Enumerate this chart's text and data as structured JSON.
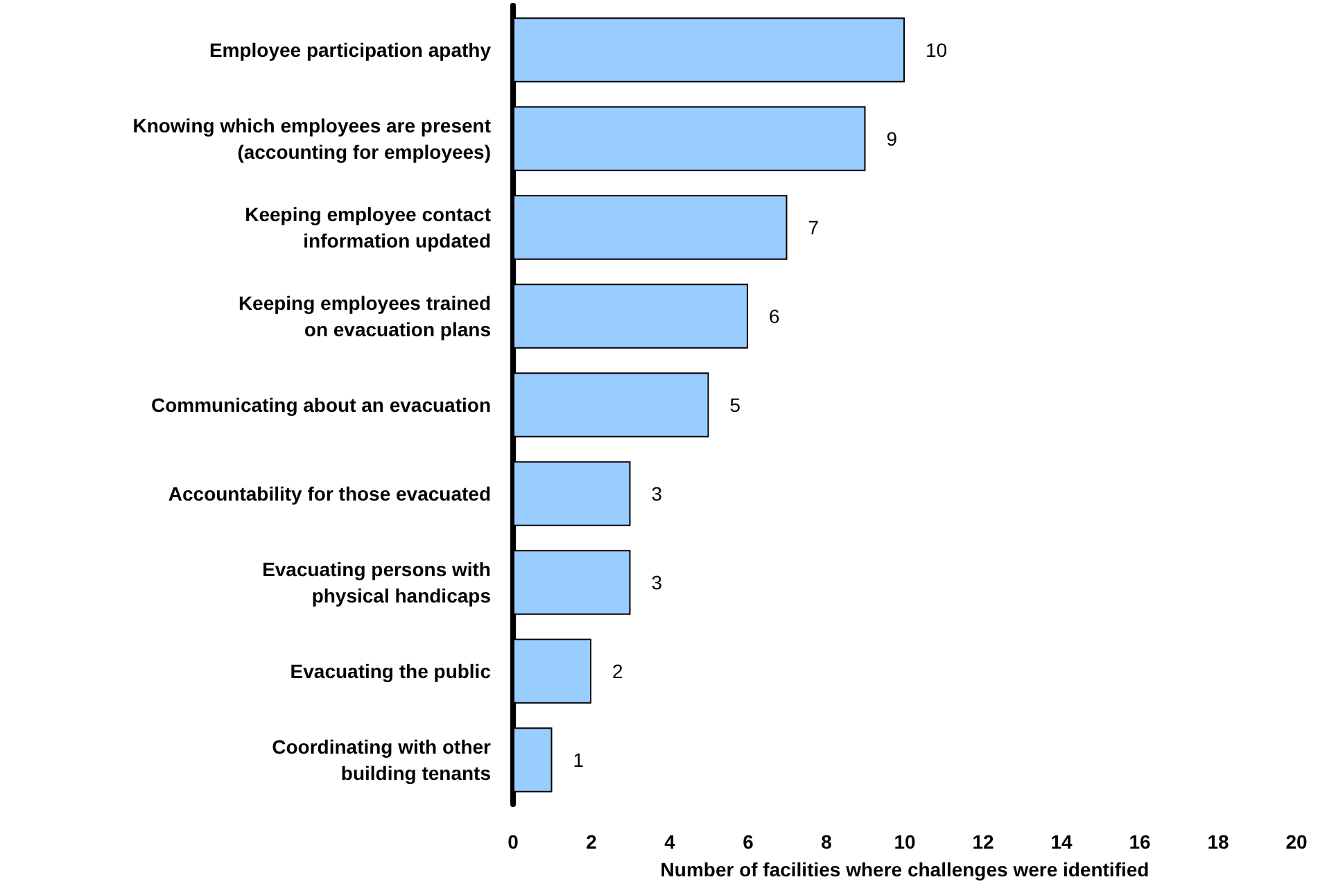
{
  "chart_data": {
    "type": "bar",
    "orientation": "horizontal",
    "categories": [
      "Employee participation apathy",
      "Knowing which employees are present\n(accounting for employees)",
      "Keeping employee contact\ninformation updated",
      "Keeping employees trained\non evacuation plans",
      "Communicating about an evacuation",
      "Accountability for those evacuated",
      "Evacuating persons with\nphysical handicaps",
      "Evacuating the public",
      "Coordinating with other\nbuilding tenants"
    ],
    "values": [
      10,
      9,
      7,
      6,
      5,
      3,
      3,
      2,
      1
    ],
    "color": "#99ccff",
    "xlim": [
      0,
      20
    ],
    "xticks": [
      0,
      2,
      4,
      6,
      8,
      10,
      12,
      14,
      16,
      18,
      20
    ],
    "xlabel": "Number of facilities where challenges were identified",
    "data_labels": true,
    "grid": false
  }
}
